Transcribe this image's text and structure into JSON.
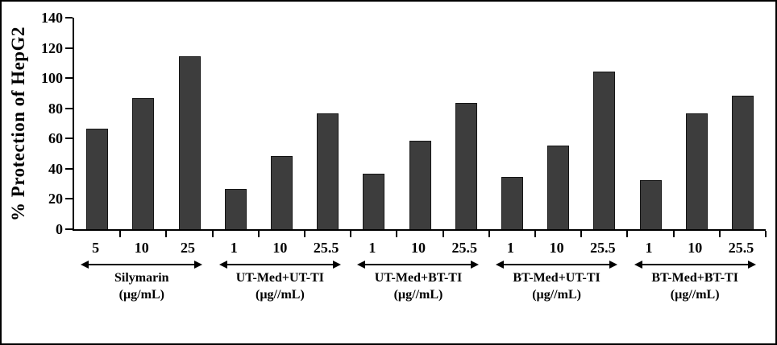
{
  "figure": {
    "background": "#ffffff",
    "frame_border_color": "#000000"
  },
  "chart_data": {
    "type": "bar",
    "title": "",
    "ylabel": "% Protection of HepG2",
    "xlabel": "",
    "ylim": [
      0,
      140
    ],
    "yticks": [
      0,
      20,
      40,
      60,
      80,
      100,
      120,
      140
    ],
    "grid": false,
    "legend_position": "none",
    "bar_fill": "#3d3d3d",
    "bar_border": "#151515",
    "axis_color": "#000000",
    "groups": [
      {
        "name": "Silymarin",
        "unit": "(µg/mL)",
        "categories": [
          "5",
          "10",
          "25"
        ],
        "values": [
          66,
          86,
          114
        ]
      },
      {
        "name": "UT-Med+UT-TI",
        "unit": "(µg//mL)",
        "categories": [
          "1",
          "10",
          "25.5"
        ],
        "values": [
          26,
          48,
          76
        ]
      },
      {
        "name": "UT-Med+BT-TI",
        "unit": "(µg//mL)",
        "categories": [
          "1",
          "10",
          "25.5"
        ],
        "values": [
          36,
          58,
          83
        ]
      },
      {
        "name": "BT-Med+UT-TI",
        "unit": "(µg//mL)",
        "categories": [
          "1",
          "10",
          "25.5"
        ],
        "values": [
          34,
          55,
          104
        ]
      },
      {
        "name": "BT-Med+BT-TI",
        "unit": "(µg//mL)",
        "categories": [
          "1",
          "10",
          "25.5"
        ],
        "values": [
          32,
          76,
          88
        ]
      }
    ]
  }
}
